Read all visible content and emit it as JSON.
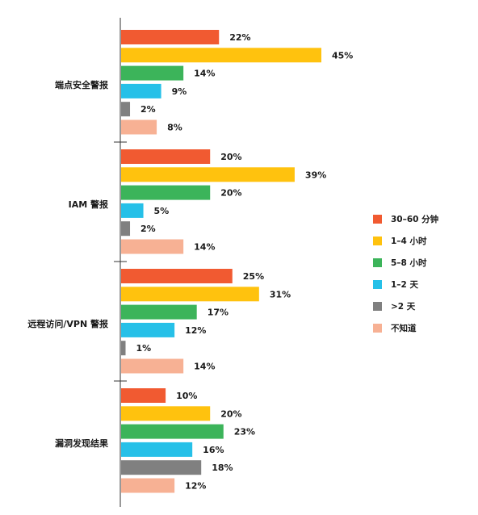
{
  "chart_data": {
    "type": "bar",
    "orientation": "horizontal",
    "categories": [
      "端点安全警报",
      "IAM 警报",
      "远程访问/VPN 警报",
      "漏洞发现结果"
    ],
    "series": [
      {
        "name": "30–60 分钟",
        "color": "#f15a31",
        "values": [
          22,
          20,
          25,
          10
        ],
        "labels": [
          "22%",
          "20%",
          "25%",
          "10%"
        ]
      },
      {
        "name": "1–4 小时",
        "color": "#ffc20e",
        "values": [
          45,
          39,
          31,
          20
        ],
        "labels": [
          "45%",
          "39%",
          "31%",
          "20%"
        ]
      },
      {
        "name": "5–8 小时",
        "color": "#3cb45a",
        "values": [
          14,
          20,
          17,
          23
        ],
        "labels": [
          "14%",
          "20%",
          "17%",
          "23%"
        ]
      },
      {
        "name": "1–2 天",
        "color": "#26c0e8",
        "values": [
          9,
          5,
          12,
          16
        ],
        "labels": [
          "9%",
          "5%",
          "12%",
          "16%"
        ]
      },
      {
        "name": ">2 天",
        "color": "#808080",
        "values": [
          2,
          2,
          1,
          18
        ],
        "labels": [
          "2%",
          "2%",
          "1%",
          "18%"
        ]
      },
      {
        "name": "不知道",
        "color": "#f7b194",
        "values": [
          8,
          14,
          14,
          12
        ],
        "labels": [
          "8%",
          "14%",
          "14%",
          "12%"
        ]
      }
    ],
    "xlim": [
      0,
      45
    ],
    "grid": false,
    "legend_position": "right"
  }
}
